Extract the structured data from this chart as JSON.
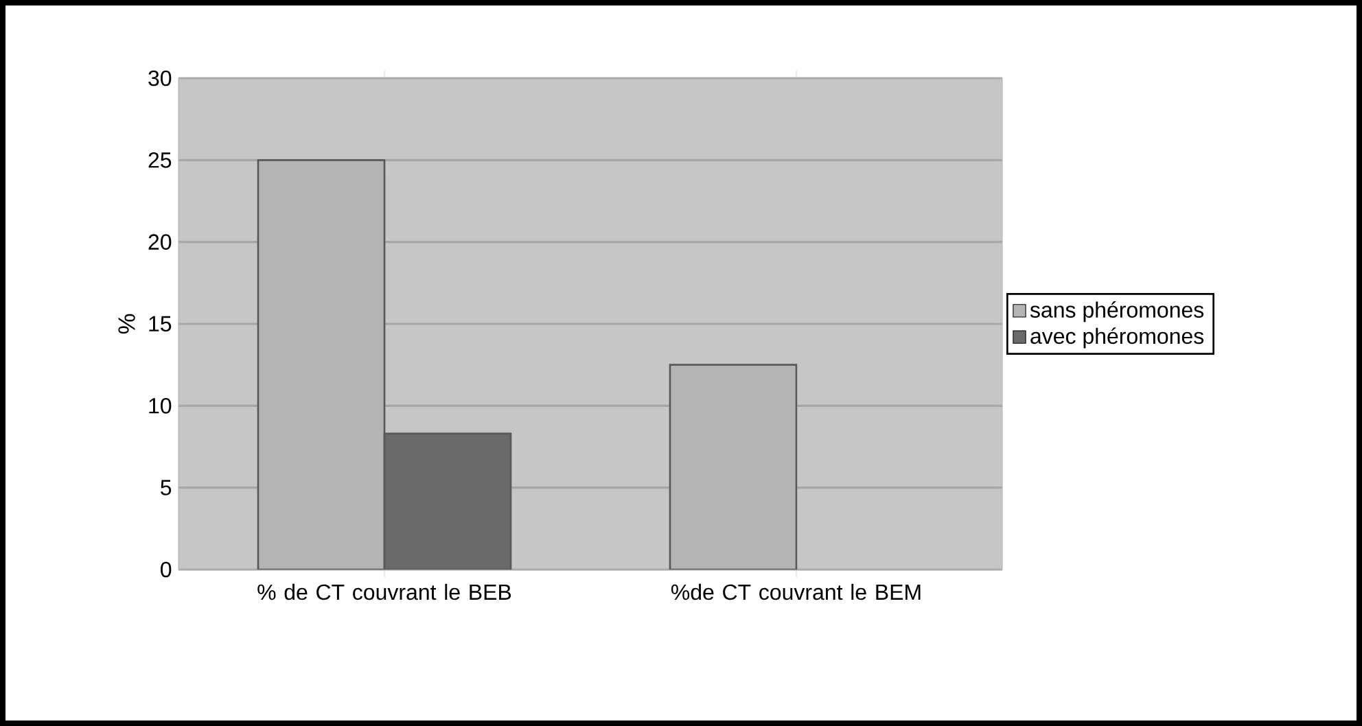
{
  "chart_data": {
    "type": "bar",
    "ylabel": "%",
    "categories": [
      "% de CT couvrant le BEB",
      "%de CT couvrant le BEM"
    ],
    "series": [
      {
        "name": "sans phéromones",
        "color": "#b4b4b4",
        "values": [
          25,
          12.5
        ]
      },
      {
        "name": "avec phéromones",
        "color": "#6a6a6a",
        "values": [
          8.3,
          null
        ]
      }
    ],
    "ylim": [
      0,
      30
    ],
    "yticks": [
      0,
      5,
      10,
      15,
      20,
      25,
      30
    ],
    "grid": "y",
    "legend": "right"
  }
}
